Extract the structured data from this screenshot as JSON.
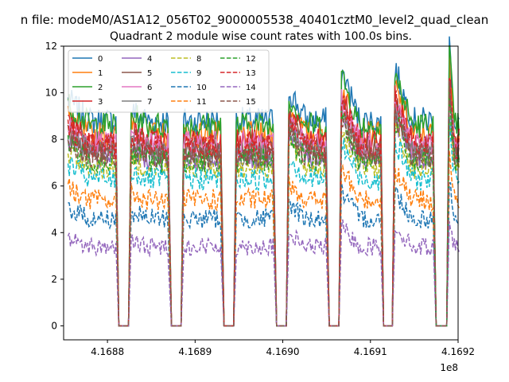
{
  "chart_data": {
    "type": "line",
    "suptitle": "n file: modeM0/AS1A12_056T02_9000005538_40401cztM0_level2_quad_clean",
    "title": "Quadrant 2 module wise count rates with 100.0s bins.",
    "xlabel": "",
    "ylabel": "",
    "offset_label": "1e8",
    "xlim": [
      4.16875,
      4.1692
    ],
    "ylim": [
      -0.6,
      12
    ],
    "x_ticks": [
      4.1688,
      4.1689,
      4.169,
      4.1691,
      4.1692
    ],
    "x_tick_labels": [
      "4.1688",
      "4.1689",
      "4.1690",
      "4.1691",
      "4.1692"
    ],
    "y_ticks": [
      0,
      2,
      4,
      6,
      8,
      10,
      12
    ],
    "y_tick_labels": [
      "0",
      "2",
      "4",
      "6",
      "8",
      "10",
      "12"
    ],
    "legend_placement": "upper-left",
    "legend_columns": 4,
    "observation_segments": [
      {
        "start": 4.168755,
        "end": 4.16881,
        "peak": 1.1
      },
      {
        "start": 4.168827,
        "end": 4.16887,
        "peak": 1.05
      },
      {
        "start": 4.168887,
        "end": 4.16893,
        "peak": 1.0
      },
      {
        "start": 4.168947,
        "end": 4.16899,
        "peak": 1.0
      },
      {
        "start": 4.169007,
        "end": 4.16905,
        "peak": 1.15
      },
      {
        "start": 4.169067,
        "end": 4.169112,
        "peak": 1.25
      },
      {
        "start": 4.169128,
        "end": 4.169172,
        "peak": 1.25
      },
      {
        "start": 4.16919,
        "end": 4.169202,
        "peak": 1.38
      }
    ],
    "series": [
      {
        "name": "0",
        "color": "#1f77b4",
        "dash": "solid",
        "level": 8.8
      },
      {
        "name": "1",
        "color": "#ff7f0e",
        "dash": "solid",
        "level": 8.2
      },
      {
        "name": "2",
        "color": "#2ca02c",
        "dash": "solid",
        "level": 8.6
      },
      {
        "name": "3",
        "color": "#d62728",
        "dash": "solid",
        "level": 7.9
      },
      {
        "name": "4",
        "color": "#9467bd",
        "dash": "solid",
        "level": 7.2
      },
      {
        "name": "5",
        "color": "#8c564b",
        "dash": "solid",
        "level": 7.6
      },
      {
        "name": "6",
        "color": "#e377c2",
        "dash": "solid",
        "level": 7.8
      },
      {
        "name": "7",
        "color": "#7f7f7f",
        "dash": "solid",
        "level": 7.4
      },
      {
        "name": "8",
        "color": "#bcbd22",
        "dash": "dashed",
        "level": 6.8
      },
      {
        "name": "9",
        "color": "#17becf",
        "dash": "dashed",
        "level": 6.3
      },
      {
        "name": "10",
        "color": "#1f77b4",
        "dash": "dashed",
        "level": 4.6
      },
      {
        "name": "11",
        "color": "#ff7f0e",
        "dash": "dashed",
        "level": 5.4
      },
      {
        "name": "12",
        "color": "#2ca02c",
        "dash": "dashed",
        "level": 7.1
      },
      {
        "name": "13",
        "color": "#d62728",
        "dash": "dashed",
        "level": 7.7
      },
      {
        "name": "14",
        "color": "#9467bd",
        "dash": "dashed",
        "level": 3.4
      },
      {
        "name": "15",
        "color": "#8c564b",
        "dash": "dashed",
        "level": 7.3
      }
    ]
  }
}
